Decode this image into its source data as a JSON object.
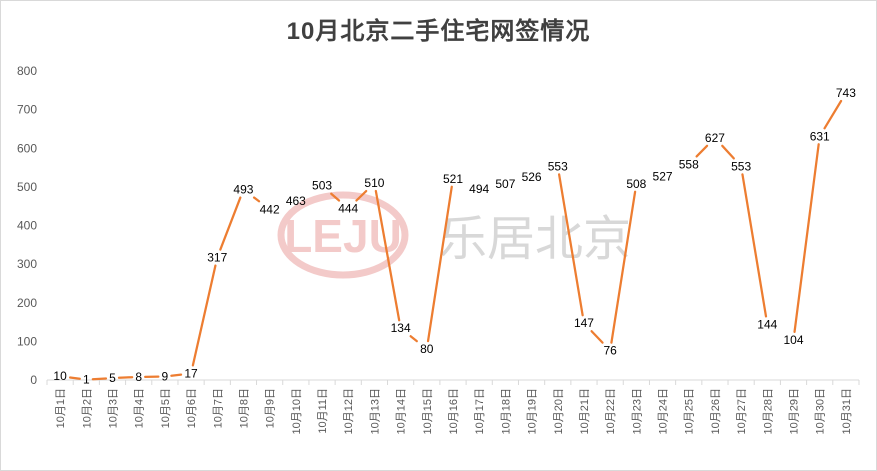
{
  "chart_data": {
    "type": "line",
    "title": "10月北京二手住宅网签情况",
    "xlabel": "",
    "ylabel": "",
    "ylim": [
      0,
      800
    ],
    "yticks": [
      0,
      100,
      200,
      300,
      400,
      500,
      600,
      700,
      800
    ],
    "grid": false,
    "legend": "none",
    "color": "#ed7d31",
    "categories": [
      "10月1日",
      "10月2日",
      "10月3日",
      "10月4日",
      "10月5日",
      "10月6日",
      "10月7日",
      "10月8日",
      "10月9日",
      "10月10日",
      "10月11日",
      "10月12日",
      "10月13日",
      "10月14日",
      "10月15日",
      "10月16日",
      "10月17日",
      "10月18日",
      "10月19日",
      "10月20日",
      "10月21日",
      "10月22日",
      "10月23日",
      "10月24日",
      "10月25日",
      "10月26日",
      "10月27日",
      "10月28日",
      "10月29日",
      "10月30日",
      "10月31日"
    ],
    "values": [
      10,
      1,
      5,
      8,
      9,
      17,
      317,
      493,
      442,
      463,
      503,
      444,
      510,
      134,
      80,
      521,
      494,
      507,
      526,
      553,
      147,
      76,
      508,
      527,
      558,
      627,
      553,
      144,
      104,
      631,
      743
    ]
  },
  "watermark": {
    "logo_text": "LEJU",
    "brand_text": "乐居北京",
    "logo_color": "#d9534f"
  }
}
